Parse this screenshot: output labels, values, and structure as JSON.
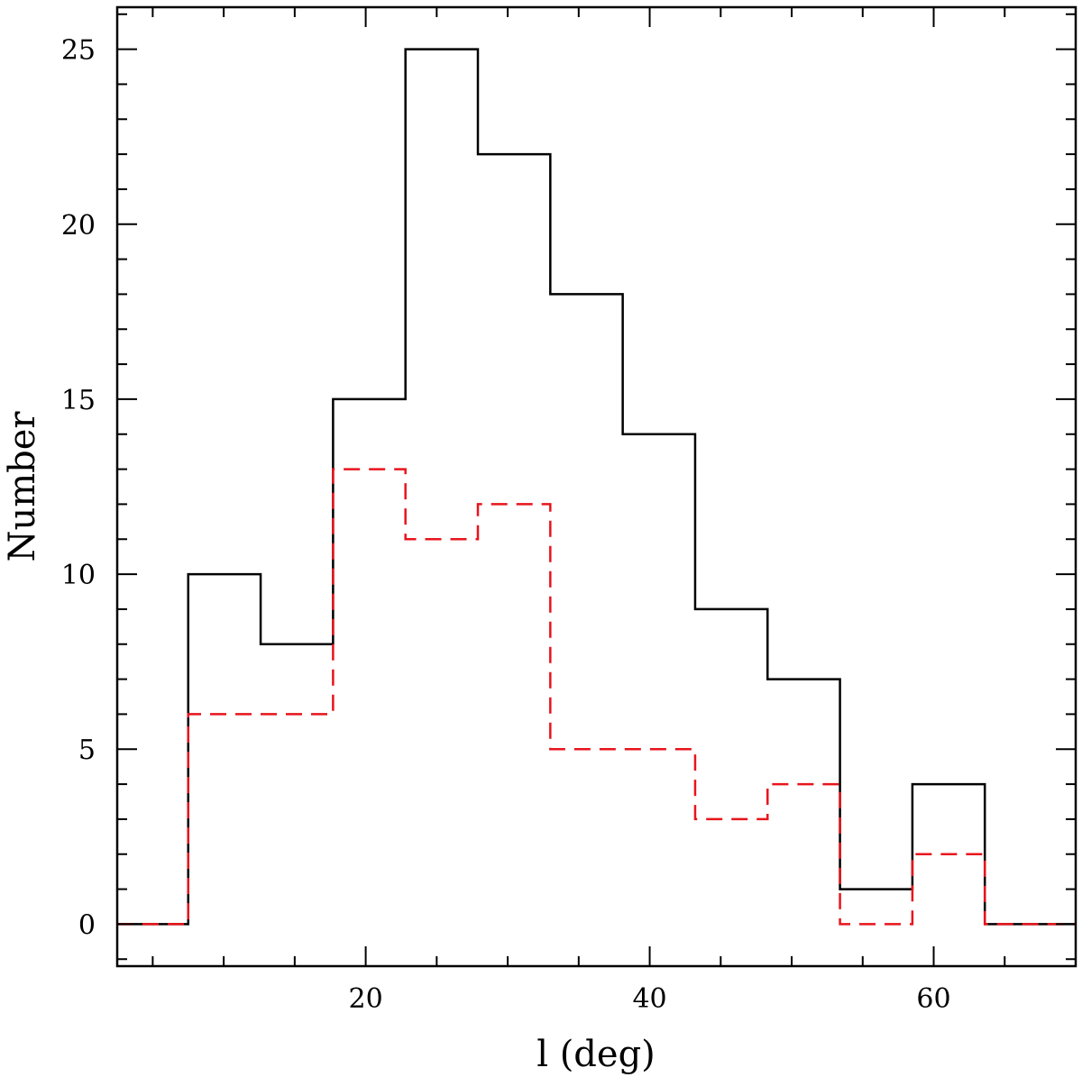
{
  "chart_data": {
    "type": "histogram",
    "title": "",
    "xlabel": "l (deg)",
    "ylabel": "Number",
    "xlim": [
      2.5,
      70
    ],
    "ylim": [
      -1.2,
      26.2
    ],
    "x_ticks": [
      20,
      40,
      60
    ],
    "x_tick_labels": [
      "20",
      "40",
      "60"
    ],
    "y_ticks": [
      0,
      5,
      10,
      15,
      20,
      25
    ],
    "y_tick_labels": [
      "0",
      "5",
      "10",
      "15",
      "20",
      "25"
    ],
    "x_minor_step": 5,
    "y_minor_step": 1,
    "grid": false,
    "legend": "none",
    "bin_edges": [
      2.5,
      7.5,
      12.6,
      17.7,
      22.8,
      27.9,
      33.0,
      38.1,
      43.2,
      48.3,
      53.4,
      58.5,
      63.6,
      70
    ],
    "series": [
      {
        "style": "solid",
        "color": "#000000",
        "values": [
          0,
          10,
          8,
          15,
          25,
          22,
          18,
          14,
          9,
          7,
          1,
          4,
          0
        ]
      },
      {
        "style": "dashed",
        "color": "#e8141c",
        "values": [
          0,
          6,
          6,
          13,
          11,
          12,
          5,
          5,
          3,
          4,
          0,
          2,
          0
        ]
      }
    ]
  }
}
